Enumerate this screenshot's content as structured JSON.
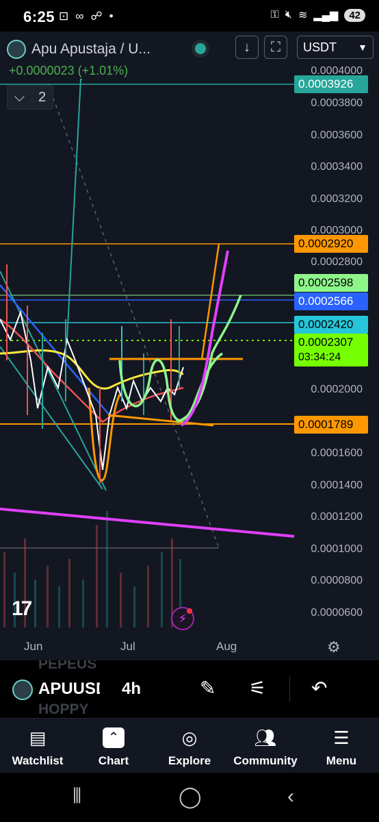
{
  "status_bar": {
    "time": "6:25",
    "left_icons": [
      "screenshot-icon",
      "voicemail-icon",
      "missed-call-icon",
      "dot-icon"
    ],
    "right_icons": [
      "key-icon",
      "mute-icon",
      "wifi-icon",
      "signal-icon"
    ],
    "battery": "42"
  },
  "chart": {
    "symbol_title": "Apu Apustaja / U...",
    "change": "+0.0000023 (+1.01%)",
    "indicator_count": "2",
    "currency": "USDT",
    "y_axis_labels": [
      "0.0004000",
      "0.0003800",
      "0.0003600",
      "0.0003400",
      "0.0003200",
      "0.0003000",
      "0.0002800",
      "0.0002000",
      "0.0001600",
      "0.0001400",
      "0.0001200",
      "0.0001000",
      "0.0000800",
      "0.0000600"
    ],
    "price_tags": [
      {
        "value": "0.0003926",
        "color": "#26a69a"
      },
      {
        "value": "0.0002920",
        "color": "#ff9800"
      },
      {
        "value": "0.0002598",
        "color": "#8ef58b"
      },
      {
        "value": "0.0002566",
        "color": "#2962ff"
      },
      {
        "value": "0.0002420",
        "color": "#26c6da"
      },
      {
        "value": "0.0002307",
        "sub": "03:34:24",
        "color": "#76ff03"
      },
      {
        "value": "0.0001789",
        "color": "#ff9800"
      }
    ],
    "x_axis_labels": [
      "Jun",
      "Jul",
      "Aug"
    ],
    "colors": {
      "background": "#131722",
      "orange": "#ff9800",
      "magenta": "#e040fb",
      "light_green": "#8ef58b",
      "blue": "#2962ff",
      "teal": "#26a69a",
      "cyan": "#26c6da",
      "yellow": "#ffeb3b",
      "red": "#ef5350"
    }
  },
  "toolbar": {
    "symbol": "APUUSDT",
    "interval": "4h",
    "ghost_above": "PEPEUS",
    "ghost_below": "HOPPY"
  },
  "tabs": [
    {
      "label": "Watchlist",
      "icon": "watchlist-icon"
    },
    {
      "label": "Chart",
      "icon": "chart-icon"
    },
    {
      "label": "Explore",
      "icon": "compass-icon"
    },
    {
      "label": "Community",
      "icon": "community-icon"
    },
    {
      "label": "Menu",
      "icon": "menu-icon"
    }
  ]
}
